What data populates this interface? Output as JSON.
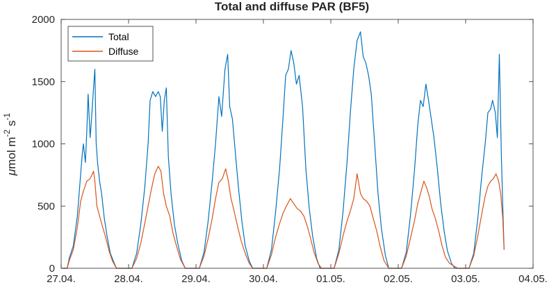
{
  "chart_data": {
    "type": "line",
    "title": "Total and diffuse PAR (BF5)",
    "xlabel": "",
    "ylabel_parts": {
      "mu": "μ",
      "base": "mol m",
      "exp1": "-2",
      "s": " s",
      "exp2": "-1"
    },
    "x_ticks": [
      "27.04.",
      "28.04.",
      "29.04.",
      "30.04.",
      "01.05.",
      "02.05.",
      "03.05.",
      "04.05."
    ],
    "xlim": [
      0,
      7
    ],
    "ylim": [
      0,
      2000
    ],
    "y_ticks": [
      "0",
      "500",
      "1000",
      "1500",
      "2000"
    ],
    "y_tick_values": [
      0,
      500,
      1000,
      1500,
      2000
    ],
    "grid": false,
    "legend_position": "top-left",
    "series": [
      {
        "name": "Total",
        "color": "#0072BD",
        "values": [
          [
            0.04,
            0
          ],
          [
            0.09,
            0
          ],
          [
            0.12,
            80
          ],
          [
            0.18,
            180
          ],
          [
            0.24,
            420
          ],
          [
            0.29,
            760
          ],
          [
            0.31,
            900
          ],
          [
            0.33,
            1000
          ],
          [
            0.36,
            850
          ],
          [
            0.38,
            1100
          ],
          [
            0.4,
            1400
          ],
          [
            0.43,
            1050
          ],
          [
            0.45,
            1200
          ],
          [
            0.48,
            1450
          ],
          [
            0.5,
            1600
          ],
          [
            0.52,
            1000
          ],
          [
            0.54,
            850
          ],
          [
            0.57,
            700
          ],
          [
            0.6,
            600
          ],
          [
            0.64,
            400
          ],
          [
            0.68,
            260
          ],
          [
            0.73,
            120
          ],
          [
            0.78,
            50
          ],
          [
            0.82,
            0
          ],
          [
            0.88,
            0
          ],
          [
            1.05,
            0
          ],
          [
            1.12,
            120
          ],
          [
            1.18,
            350
          ],
          [
            1.24,
            650
          ],
          [
            1.29,
            1000
          ],
          [
            1.32,
            1350
          ],
          [
            1.36,
            1420
          ],
          [
            1.4,
            1380
          ],
          [
            1.44,
            1420
          ],
          [
            1.47,
            1380
          ],
          [
            1.5,
            1100
          ],
          [
            1.53,
            1350
          ],
          [
            1.56,
            1450
          ],
          [
            1.59,
            900
          ],
          [
            1.63,
            600
          ],
          [
            1.68,
            350
          ],
          [
            1.73,
            200
          ],
          [
            1.79,
            60
          ],
          [
            1.84,
            0
          ],
          [
            2.05,
            0
          ],
          [
            2.12,
            130
          ],
          [
            2.18,
            380
          ],
          [
            2.24,
            700
          ],
          [
            2.29,
            1000
          ],
          [
            2.34,
            1380
          ],
          [
            2.38,
            1220
          ],
          [
            2.43,
            1600
          ],
          [
            2.47,
            1720
          ],
          [
            2.5,
            1300
          ],
          [
            2.54,
            1200
          ],
          [
            2.58,
            950
          ],
          [
            2.63,
            650
          ],
          [
            2.68,
            380
          ],
          [
            2.73,
            180
          ],
          [
            2.79,
            60
          ],
          [
            2.84,
            0
          ],
          [
            3.05,
            0
          ],
          [
            3.12,
            150
          ],
          [
            3.18,
            450
          ],
          [
            3.24,
            800
          ],
          [
            3.29,
            1200
          ],
          [
            3.33,
            1550
          ],
          [
            3.37,
            1600
          ],
          [
            3.41,
            1750
          ],
          [
            3.45,
            1650
          ],
          [
            3.49,
            1480
          ],
          [
            3.53,
            1550
          ],
          [
            3.58,
            1300
          ],
          [
            3.63,
            800
          ],
          [
            3.68,
            480
          ],
          [
            3.73,
            260
          ],
          [
            3.79,
            80
          ],
          [
            3.84,
            0
          ],
          [
            4.05,
            0
          ],
          [
            4.12,
            150
          ],
          [
            4.18,
            450
          ],
          [
            4.24,
            850
          ],
          [
            4.29,
            1250
          ],
          [
            4.34,
            1600
          ],
          [
            4.39,
            1830
          ],
          [
            4.44,
            1900
          ],
          [
            4.48,
            1700
          ],
          [
            4.52,
            1650
          ],
          [
            4.56,
            1550
          ],
          [
            4.6,
            1400
          ],
          [
            4.65,
            1000
          ],
          [
            4.7,
            600
          ],
          [
            4.75,
            320
          ],
          [
            4.81,
            100
          ],
          [
            4.86,
            0
          ],
          [
            5.05,
            0
          ],
          [
            5.12,
            130
          ],
          [
            5.18,
            420
          ],
          [
            5.24,
            780
          ],
          [
            5.29,
            1150
          ],
          [
            5.33,
            1350
          ],
          [
            5.37,
            1300
          ],
          [
            5.41,
            1480
          ],
          [
            5.45,
            1350
          ],
          [
            5.49,
            1200
          ],
          [
            5.53,
            1050
          ],
          [
            5.58,
            800
          ],
          [
            5.63,
            520
          ],
          [
            5.68,
            300
          ],
          [
            5.73,
            140
          ],
          [
            5.79,
            40
          ],
          [
            5.84,
            0
          ],
          [
            6.05,
            0
          ],
          [
            6.12,
            120
          ],
          [
            6.18,
            400
          ],
          [
            6.24,
            750
          ],
          [
            6.29,
            1000
          ],
          [
            6.33,
            1250
          ],
          [
            6.37,
            1280
          ],
          [
            6.4,
            1350
          ],
          [
            6.44,
            1250
          ],
          [
            6.47,
            1050
          ],
          [
            6.5,
            1720
          ],
          [
            6.53,
            900
          ],
          [
            6.55,
            500
          ],
          [
            6.57,
            150
          ]
        ]
      },
      {
        "name": "Diffuse",
        "color": "#D95319",
        "values": [
          [
            0.0,
            0
          ],
          [
            0.09,
            0
          ],
          [
            0.12,
            60
          ],
          [
            0.18,
            150
          ],
          [
            0.24,
            330
          ],
          [
            0.29,
            540
          ],
          [
            0.33,
            620
          ],
          [
            0.38,
            700
          ],
          [
            0.43,
            720
          ],
          [
            0.48,
            780
          ],
          [
            0.5,
            700
          ],
          [
            0.53,
            500
          ],
          [
            0.57,
            420
          ],
          [
            0.61,
            340
          ],
          [
            0.66,
            250
          ],
          [
            0.71,
            140
          ],
          [
            0.76,
            60
          ],
          [
            0.82,
            0
          ],
          [
            0.95,
            0
          ],
          [
            1.05,
            0
          ],
          [
            1.12,
            80
          ],
          [
            1.18,
            200
          ],
          [
            1.24,
            360
          ],
          [
            1.29,
            500
          ],
          [
            1.34,
            640
          ],
          [
            1.39,
            760
          ],
          [
            1.44,
            820
          ],
          [
            1.48,
            780
          ],
          [
            1.52,
            600
          ],
          [
            1.56,
            500
          ],
          [
            1.61,
            420
          ],
          [
            1.66,
            280
          ],
          [
            1.71,
            180
          ],
          [
            1.77,
            70
          ],
          [
            1.84,
            0
          ],
          [
            1.95,
            0
          ],
          [
            2.05,
            0
          ],
          [
            2.12,
            100
          ],
          [
            2.18,
            240
          ],
          [
            2.24,
            400
          ],
          [
            2.29,
            560
          ],
          [
            2.34,
            690
          ],
          [
            2.39,
            720
          ],
          [
            2.44,
            800
          ],
          [
            2.48,
            700
          ],
          [
            2.52,
            560
          ],
          [
            2.57,
            450
          ],
          [
            2.62,
            330
          ],
          [
            2.67,
            220
          ],
          [
            2.73,
            120
          ],
          [
            2.79,
            40
          ],
          [
            2.84,
            0
          ],
          [
            2.95,
            0
          ],
          [
            3.05,
            0
          ],
          [
            3.12,
            110
          ],
          [
            3.18,
            250
          ],
          [
            3.24,
            360
          ],
          [
            3.29,
            440
          ],
          [
            3.34,
            500
          ],
          [
            3.4,
            560
          ],
          [
            3.45,
            520
          ],
          [
            3.5,
            480
          ],
          [
            3.55,
            460
          ],
          [
            3.6,
            420
          ],
          [
            3.65,
            340
          ],
          [
            3.7,
            240
          ],
          [
            3.75,
            130
          ],
          [
            3.81,
            40
          ],
          [
            3.86,
            0
          ],
          [
            3.95,
            0
          ],
          [
            4.05,
            0
          ],
          [
            4.12,
            120
          ],
          [
            4.18,
            260
          ],
          [
            4.24,
            380
          ],
          [
            4.29,
            460
          ],
          [
            4.34,
            560
          ],
          [
            4.39,
            760
          ],
          [
            4.44,
            600
          ],
          [
            4.48,
            560
          ],
          [
            4.53,
            540
          ],
          [
            4.58,
            500
          ],
          [
            4.63,
            400
          ],
          [
            4.68,
            300
          ],
          [
            4.73,
            180
          ],
          [
            4.79,
            60
          ],
          [
            4.86,
            0
          ],
          [
            4.95,
            0
          ],
          [
            5.05,
            0
          ],
          [
            5.12,
            100
          ],
          [
            5.18,
            240
          ],
          [
            5.24,
            380
          ],
          [
            5.29,
            520
          ],
          [
            5.33,
            600
          ],
          [
            5.38,
            700
          ],
          [
            5.42,
            650
          ],
          [
            5.46,
            580
          ],
          [
            5.5,
            480
          ],
          [
            5.55,
            400
          ],
          [
            5.6,
            300
          ],
          [
            5.65,
            180
          ],
          [
            5.7,
            90
          ],
          [
            5.76,
            40
          ],
          [
            5.82,
            20
          ],
          [
            5.88,
            0
          ],
          [
            5.95,
            0
          ],
          [
            6.05,
            0
          ],
          [
            6.12,
            100
          ],
          [
            6.18,
            260
          ],
          [
            6.24,
            440
          ],
          [
            6.29,
            580
          ],
          [
            6.33,
            660
          ],
          [
            6.37,
            700
          ],
          [
            6.41,
            720
          ],
          [
            6.45,
            760
          ],
          [
            6.49,
            700
          ],
          [
            6.52,
            600
          ],
          [
            6.55,
            400
          ],
          [
            6.57,
            150
          ]
        ]
      }
    ]
  }
}
